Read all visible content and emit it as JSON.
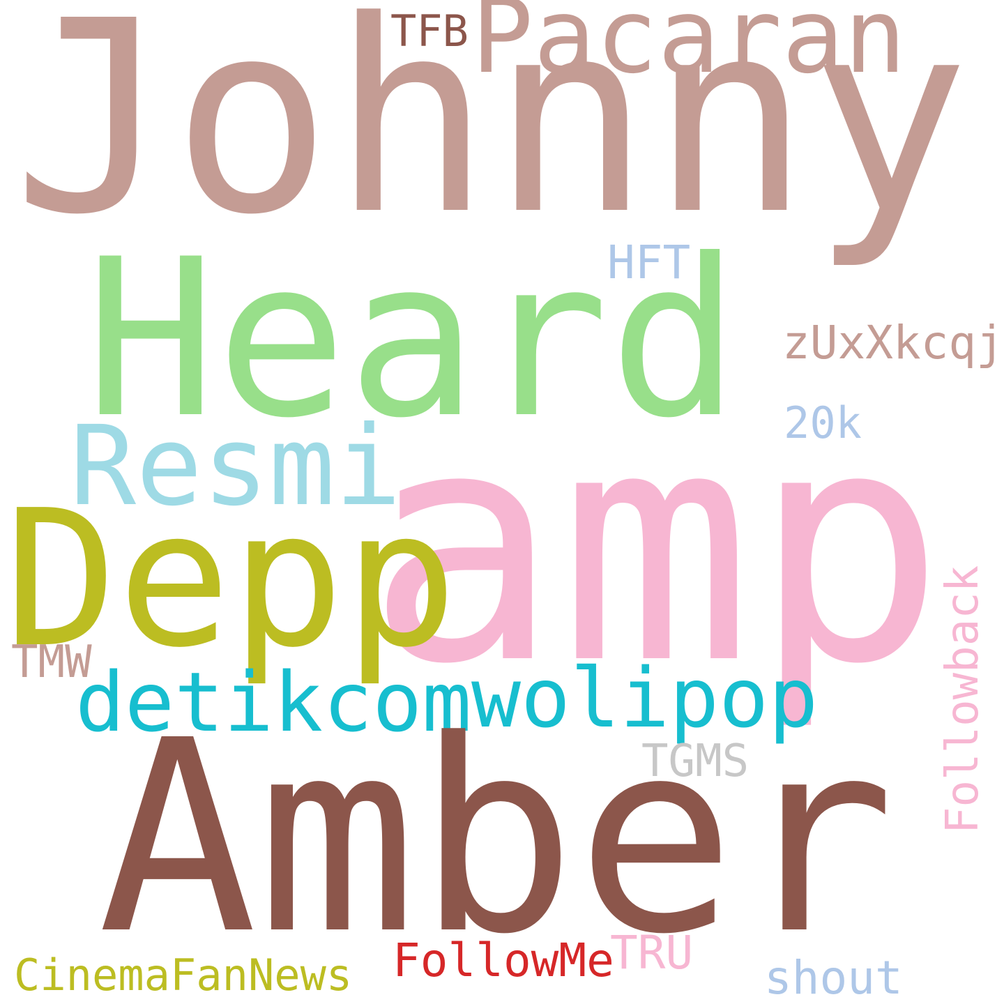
{
  "words": [
    {
      "text": "Johnny",
      "color": "#c49c94"
    },
    {
      "text": "Pacaran",
      "color": "#c49c94"
    },
    {
      "text": "TFB",
      "color": "#8c564b"
    },
    {
      "text": "Heard",
      "color": "#98df8a"
    },
    {
      "text": "HFT",
      "color": "#aec7e8"
    },
    {
      "text": "zUxXkcqj",
      "color": "#c49c94"
    },
    {
      "text": "20k",
      "color": "#aec7e8"
    },
    {
      "text": "Resmi",
      "color": "#9edae5"
    },
    {
      "text": "amp",
      "color": "#f7b6d2"
    },
    {
      "text": "Depp",
      "color": "#bcbd22"
    },
    {
      "text": "TMW",
      "color": "#c49c94"
    },
    {
      "text": "detikcom",
      "color": "#17becf"
    },
    {
      "text": "wolipop",
      "color": "#17becf"
    },
    {
      "text": "Followback",
      "color": "#f7b6d2"
    },
    {
      "text": "TGMS",
      "color": "#c7c7c7"
    },
    {
      "text": "Amber",
      "color": "#8c564b"
    },
    {
      "text": "CinemaFanNews",
      "color": "#bcbd22"
    },
    {
      "text": "FollowMe",
      "color": "#d62728"
    },
    {
      "text": "TRU",
      "color": "#f7b6d2"
    },
    {
      "text": "shout",
      "color": "#aec7e8"
    }
  ]
}
